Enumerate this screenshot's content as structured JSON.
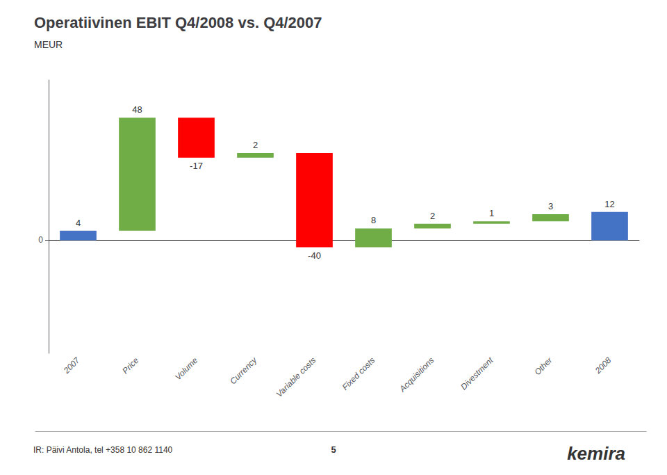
{
  "chart_data": {
    "type": "waterfall",
    "title": "Operatiivinen EBIT Q4/2008 vs. Q4/2007",
    "subtitle": "MEUR",
    "categories": [
      "2007",
      "Price",
      "Volume",
      "Currency",
      "Variable costs",
      "Fixed costs",
      "Acquisitions",
      "Divestment",
      "Other",
      "2008"
    ],
    "values": [
      4,
      48,
      -17,
      2,
      -40,
      8,
      2,
      1,
      3,
      12
    ],
    "is_absolute": [
      true,
      false,
      false,
      false,
      false,
      false,
      false,
      false,
      false,
      true
    ],
    "colors": [
      "#4472c4",
      "#70ad47",
      "#ff0000",
      "#70ad47",
      "#ff0000",
      "#70ad47",
      "#70ad47",
      "#70ad47",
      "#70ad47",
      "#4472c4"
    ],
    "ylim": [
      -48,
      68
    ],
    "yticks": [
      0
    ],
    "grid": false,
    "data_labels": true,
    "annotations": [
      "IR: Päivi Antola, tel +358 10 862 1140",
      "5",
      "kemira"
    ]
  }
}
